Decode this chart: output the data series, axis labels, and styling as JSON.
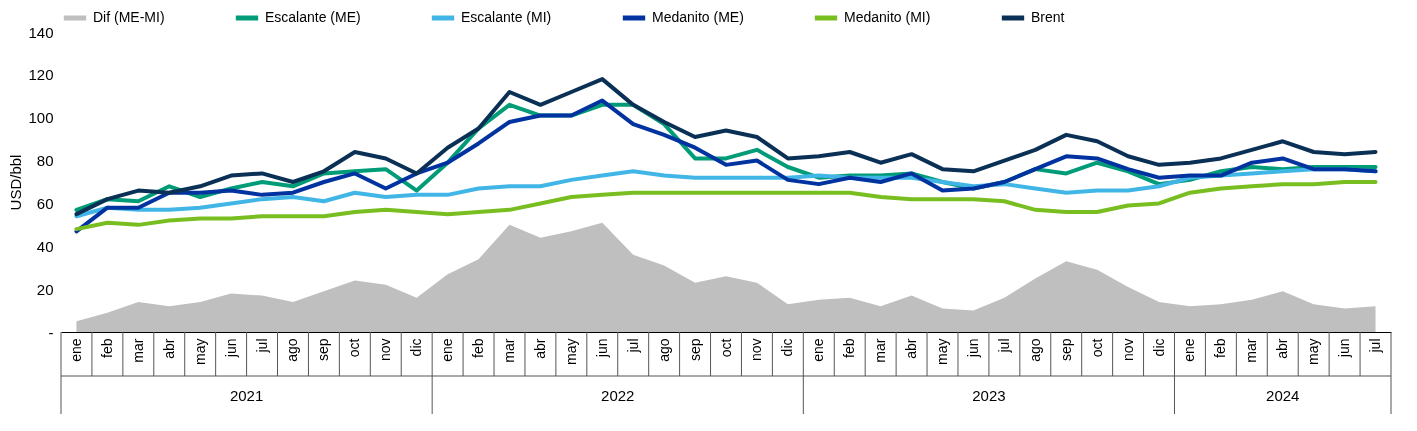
{
  "chart_data": {
    "type": "line",
    "ylabel": "USD/bbl",
    "categories": [
      "ene",
      "feb",
      "mar",
      "abr",
      "may",
      "jun",
      "jul",
      "ago",
      "sep",
      "oct",
      "nov",
      "dic",
      "ene",
      "feb",
      "mar",
      "abr",
      "may",
      "jun",
      "jul",
      "ago",
      "sep",
      "oct",
      "nov",
      "dic",
      "ene",
      "feb",
      "mar",
      "abr",
      "may",
      "jun",
      "jul",
      "ago",
      "sep",
      "oct",
      "nov",
      "dic",
      "ene",
      "feb",
      "mar",
      "abr",
      "may",
      "jun",
      "jul"
    ],
    "series": [
      {
        "name": "Dif (ME-MI)",
        "type": "area",
        "color": "#bfbfbf",
        "values": [
          5,
          9,
          14,
          12,
          14,
          18,
          17,
          14,
          19,
          24,
          22,
          16,
          27,
          34,
          50,
          44,
          47,
          51,
          36,
          31,
          23,
          26,
          23,
          13,
          15,
          16,
          12,
          17,
          11,
          10,
          16,
          25,
          33,
          29,
          21,
          14,
          12,
          13,
          15,
          19,
          13,
          11,
          12
        ]
      },
      {
        "name": "Escalante (ME)",
        "color": "#009b77",
        "values": [
          57,
          62,
          61,
          68,
          63,
          67,
          70,
          68,
          74,
          75,
          76,
          66,
          79,
          95,
          106,
          101,
          101,
          106,
          106,
          97,
          81,
          81,
          85,
          77,
          72,
          73,
          73,
          74,
          70,
          67,
          70,
          76,
          74,
          79,
          75,
          69,
          71,
          75,
          77,
          76,
          77,
          77,
          77
        ]
      },
      {
        "name": "Escalante (MI)",
        "color": "#41b6e6",
        "values": [
          54,
          58,
          57,
          57,
          58,
          60,
          62,
          63,
          61,
          65,
          63,
          64,
          64,
          67,
          68,
          68,
          71,
          73,
          75,
          73,
          72,
          72,
          72,
          72,
          73,
          72,
          72,
          72,
          70,
          68,
          69,
          67,
          65,
          66,
          66,
          68,
          72,
          73,
          74,
          75,
          76,
          76,
          75
        ]
      },
      {
        "name": "Medanito (ME)",
        "color": "#0033a0",
        "values": [
          47,
          58,
          58,
          65,
          65,
          66,
          64,
          65,
          70,
          74,
          67,
          74,
          79,
          88,
          98,
          101,
          101,
          108,
          97,
          92,
          86,
          78,
          80,
          71,
          69,
          72,
          70,
          74,
          66,
          67,
          70,
          76,
          82,
          81,
          76,
          72,
          73,
          73,
          79,
          81,
          76,
          76,
          75
        ]
      },
      {
        "name": "Medanito (MI)",
        "color": "#78be20",
        "values": [
          48,
          51,
          50,
          52,
          53,
          53,
          54,
          54,
          54,
          56,
          57,
          56,
          55,
          56,
          57,
          60,
          63,
          64,
          65,
          65,
          65,
          65,
          65,
          65,
          65,
          65,
          63,
          62,
          62,
          62,
          61,
          57,
          56,
          56,
          59,
          60,
          65,
          67,
          68,
          69,
          69,
          70,
          70
        ]
      },
      {
        "name": "Brent",
        "color": "#0a3055",
        "values": [
          55,
          62,
          66,
          65,
          68,
          73,
          74,
          70,
          75,
          84,
          81,
          74,
          86,
          95,
          112,
          106,
          112,
          118,
          106,
          98,
          91,
          94,
          91,
          81,
          82,
          84,
          79,
          83,
          76,
          75,
          80,
          85,
          92,
          89,
          82,
          78,
          79,
          81,
          85,
          89,
          84,
          83,
          84
        ]
      }
    ],
    "ylim": [
      0,
      140
    ],
    "yticks": [
      {
        "value": 0,
        "label": "-"
      },
      20,
      40,
      60,
      80,
      100,
      120,
      140
    ],
    "annotations": [
      "2021",
      "2022",
      "2023",
      "2024"
    ],
    "legend": "top",
    "grid": false,
    "marker": "none",
    "line_style": "solid"
  }
}
